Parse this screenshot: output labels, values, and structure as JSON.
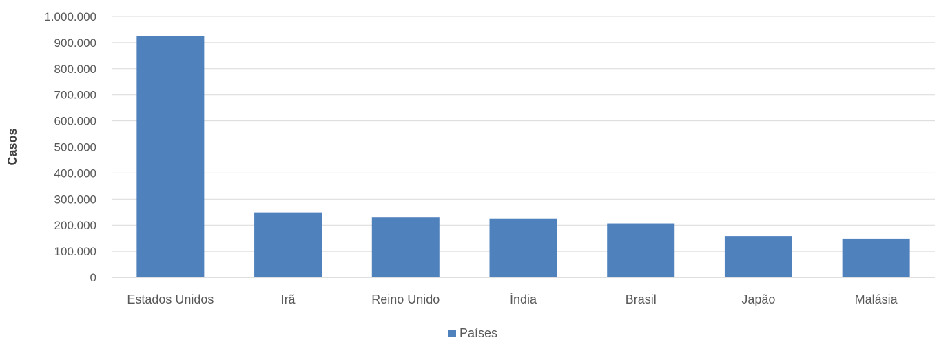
{
  "chart_data": {
    "type": "bar",
    "categories": [
      "Estados Unidos",
      "Irã",
      "Reino Unido",
      "Índia",
      "Brasil",
      "Japão",
      "Malásia"
    ],
    "series": [
      {
        "name": "Países",
        "values": [
          925000,
          249000,
          229000,
          225000,
          207000,
          158000,
          148000
        ]
      }
    ],
    "title": "",
    "xlabel": "",
    "ylabel": "Casos",
    "ylim": [
      0,
      1000000
    ],
    "yticks": [
      0,
      100000,
      200000,
      300000,
      400000,
      500000,
      600000,
      700000,
      800000,
      900000,
      1000000
    ],
    "ytick_labels": [
      "0",
      "100.000",
      "200.000",
      "300.000",
      "400.000",
      "500.000",
      "600.000",
      "700.000",
      "800.000",
      "900.000",
      "1.000.000"
    ],
    "grid": true,
    "legend_position": "bottom",
    "colors": {
      "bar": "#4f81bd",
      "grid": "#d9d9d9",
      "axis": "#bfbfbf"
    }
  }
}
